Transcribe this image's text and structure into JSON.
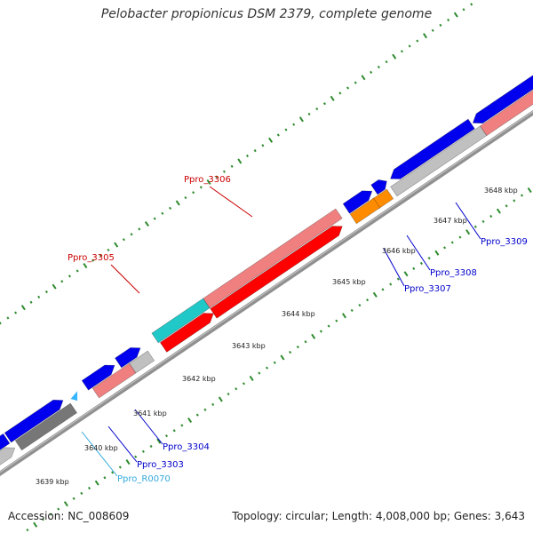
{
  "title": "Pelobacter propionicus DSM 2379, complete genome",
  "footer": {
    "accession": "Accession: NC_008609",
    "summary": "Topology: circular; Length: 4,008,000 bp; Genes: 3,643"
  },
  "colors": {
    "backbone": "#909090",
    "tick": "#2e8b2e",
    "gene_blue": "#0000ee",
    "gene_red": "#ff0000",
    "gene_pink": "#f08080",
    "gene_gray": "#c0c0c0",
    "gene_darkgray": "#777777",
    "gene_cyan": "#20c8c8",
    "gene_orange": "#ff8c00",
    "trna_skyblue": "#33b5ff"
  },
  "scale_labels": [
    "3639 kbp",
    "3640 kbp",
    "3641 kbp",
    "3642 kbp",
    "3643 kbp",
    "3644 kbp",
    "3645 kbp",
    "3646 kbp",
    "3647 kbp",
    "3648 kbp"
  ],
  "gene_labels": [
    {
      "text": "Ppro_3306",
      "color": "#cc0000"
    },
    {
      "text": "Ppro_3305",
      "color": "#cc0000"
    },
    {
      "text": "Ppro_3304",
      "color": "#0000cc"
    },
    {
      "text": "Ppro_3303",
      "color": "#0000cc"
    },
    {
      "text": "Ppro_R0070",
      "color": "#33aadd"
    },
    {
      "text": "Ppro_3307",
      "color": "#0000cc"
    },
    {
      "text": "Ppro_3308",
      "color": "#0000cc"
    },
    {
      "text": "Ppro_3309",
      "color": "#0000cc"
    }
  ]
}
